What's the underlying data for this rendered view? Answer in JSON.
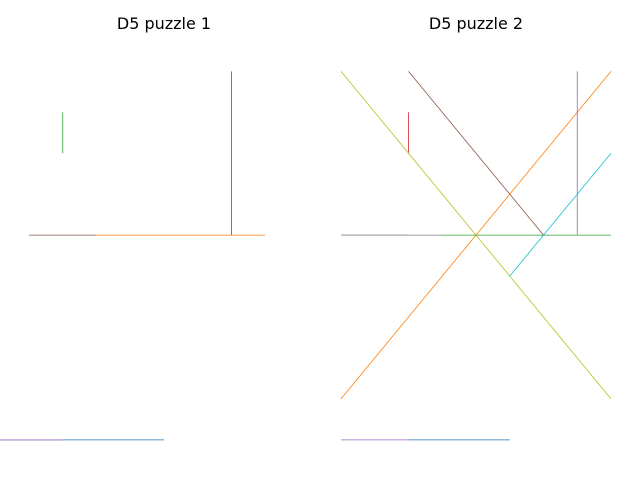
{
  "chart_data": [
    {
      "type": "line",
      "title": "D5 puzzle 1",
      "xlim": [
        -1,
        7
      ],
      "ylim": [
        -5.15,
        4.35
      ],
      "grid": false,
      "axes_visible": false,
      "segments": [
        {
          "color": "#1f77b4",
          "x": [
            -2,
            3
          ],
          "y": [
            -5,
            -5
          ]
        },
        {
          "color": "#ff7f0e",
          "x": [
            1,
            6
          ],
          "y": [
            0,
            0
          ]
        },
        {
          "color": "#2ca02c",
          "x": [
            0,
            0
          ],
          "y": [
            2,
            3
          ]
        },
        {
          "color": "#d62728",
          "x": [
            5,
            5
          ],
          "y": [
            0,
            4
          ]
        },
        {
          "color": "#9467bd",
          "x": [
            -2,
            0
          ],
          "y": [
            -5,
            -5
          ]
        },
        {
          "color": "#8c564b",
          "x": [
            -1,
            1
          ],
          "y": [
            0,
            0
          ]
        }
      ]
    },
    {
      "type": "line",
      "title": "D5 puzzle 2",
      "xlim": [
        -1,
        7
      ],
      "ylim": [
        -5.15,
        4.35
      ],
      "grid": false,
      "axes_visible": false,
      "segments": [
        {
          "color": "#1f77b4",
          "x": [
            1,
            4
          ],
          "y": [
            -5,
            -5
          ]
        },
        {
          "color": "#ff7f0e",
          "x": [
            -1,
            7
          ],
          "y": [
            -4,
            4
          ]
        },
        {
          "color": "#2ca02c",
          "x": [
            2,
            7
          ],
          "y": [
            0,
            0
          ]
        },
        {
          "color": "#d62728",
          "x": [
            1,
            1
          ],
          "y": [
            2,
            3
          ]
        },
        {
          "color": "#9467bd",
          "x": [
            6,
            6
          ],
          "y": [
            0,
            4
          ]
        },
        {
          "color": "#8c564b",
          "x": [
            1,
            5
          ],
          "y": [
            4,
            0
          ]
        },
        {
          "color": "#e377c2",
          "x": [
            -1,
            1
          ],
          "y": [
            0,
            0
          ]
        },
        {
          "color": "#7f7f7f",
          "x": [
            -1,
            2
          ],
          "y": [
            0,
            0
          ]
        },
        {
          "color": "#bcbd22",
          "x": [
            -1,
            7
          ],
          "y": [
            4,
            -4
          ]
        },
        {
          "color": "#17becf",
          "x": [
            4,
            7
          ],
          "y": [
            -1,
            2
          ]
        },
        {
          "color": "#9467bd",
          "x": [
            -1,
            1
          ],
          "y": [
            -5,
            -5
          ]
        }
      ]
    }
  ]
}
